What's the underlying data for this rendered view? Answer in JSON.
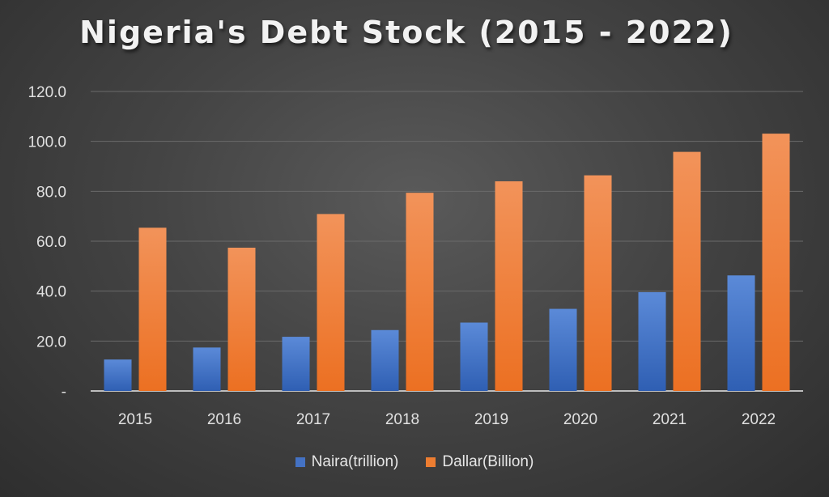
{
  "chart_data": {
    "type": "bar",
    "title": "Nigeria's Debt Stock (2015 - 2022)",
    "categories": [
      "2015",
      "2016",
      "2017",
      "2018",
      "2019",
      "2020",
      "2021",
      "2022"
    ],
    "series": [
      {
        "name": "Naira(trillion)",
        "color": "#4472C4",
        "values": [
          12.6,
          17.4,
          21.7,
          24.4,
          27.4,
          32.9,
          39.6,
          46.3
        ]
      },
      {
        "name": "Dallar(Billion)",
        "color": "#ED7D31",
        "values": [
          65.4,
          57.4,
          70.9,
          79.4,
          84.0,
          86.4,
          95.8,
          103.1
        ]
      }
    ],
    "y_ticks": [
      "-",
      "20.0",
      "40.0",
      "60.0",
      "80.0",
      "100.0",
      "120.0"
    ],
    "ylim": [
      0,
      120
    ],
    "grid": true,
    "legend_position": "bottom"
  }
}
